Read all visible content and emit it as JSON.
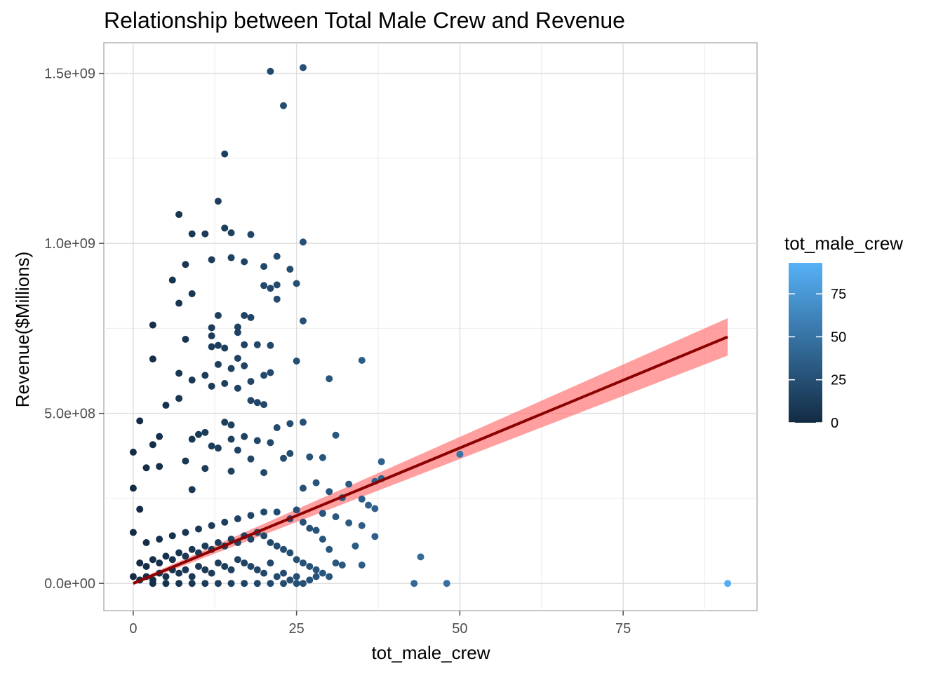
{
  "chart_data": {
    "type": "scatter",
    "title": "Relationship between Total Male Crew and Revenue",
    "xlabel": "tot_male_crew",
    "ylabel": "Revenue($Millions)",
    "xlim": [
      -4.5,
      95.5
    ],
    "ylim": [
      -80000000.0,
      1590000000.0
    ],
    "x_ticks": [
      0,
      25,
      50,
      75
    ],
    "x_tick_labels": [
      "0",
      "25",
      "50",
      "75"
    ],
    "y_ticks": [
      0,
      500000000,
      1000000000,
      1500000000
    ],
    "y_tick_labels": [
      "0.0e+00",
      "5.0e+08",
      "1.0e+09",
      "1.5e+09"
    ],
    "grid": true,
    "legend": {
      "title": "tot_male_crew",
      "placement": "right",
      "min": 0,
      "max": 93,
      "ticks": [
        0,
        25,
        50,
        75
      ],
      "tick_labels": [
        "0",
        "25",
        "50",
        "75"
      ],
      "color_low": "#132B43",
      "color_high": "#56B1F7"
    },
    "points": [
      [
        21,
        1506000000
      ],
      [
        26,
        1517000000
      ],
      [
        23,
        1405000000
      ],
      [
        14,
        1263000000
      ],
      [
        13,
        1124000000
      ],
      [
        7,
        1085000000
      ],
      [
        14,
        1045000000
      ],
      [
        9,
        1028000000
      ],
      [
        11,
        1028000000
      ],
      [
        18,
        1026000000
      ],
      [
        15,
        1031000000
      ],
      [
        26,
        1004000000
      ],
      [
        22,
        962000000
      ],
      [
        15,
        958000000
      ],
      [
        12,
        952000000
      ],
      [
        17,
        946000000
      ],
      [
        8,
        938000000
      ],
      [
        20,
        932000000
      ],
      [
        24,
        924000000
      ],
      [
        25,
        882000000
      ],
      [
        6,
        892000000
      ],
      [
        20,
        876000000
      ],
      [
        22,
        878000000
      ],
      [
        21,
        868000000
      ],
      [
        9,
        852000000
      ],
      [
        22,
        836000000
      ],
      [
        7,
        824000000
      ],
      [
        13,
        788000000
      ],
      [
        17,
        788000000
      ],
      [
        26,
        772000000
      ],
      [
        3,
        760000000
      ],
      [
        12,
        752000000
      ],
      [
        18,
        782000000
      ],
      [
        16,
        754000000
      ],
      [
        16,
        738000000
      ],
      [
        12,
        728000000
      ],
      [
        19,
        702000000
      ],
      [
        21,
        700000000
      ],
      [
        12,
        696000000
      ],
      [
        14,
        692000000
      ],
      [
        13,
        700000000
      ],
      [
        17,
        702000000
      ],
      [
        8,
        718000000
      ],
      [
        3,
        660000000
      ],
      [
        16,
        662000000
      ],
      [
        25,
        654000000
      ],
      [
        35,
        656000000
      ],
      [
        13,
        644000000
      ],
      [
        17,
        640000000
      ],
      [
        15,
        632000000
      ],
      [
        7,
        618000000
      ],
      [
        11,
        612000000
      ],
      [
        20,
        612000000
      ],
      [
        21,
        620000000
      ],
      [
        30,
        602000000
      ],
      [
        9,
        598000000
      ],
      [
        14,
        588000000
      ],
      [
        18,
        594000000
      ],
      [
        12,
        580000000
      ],
      [
        16,
        574000000
      ],
      [
        7,
        544000000
      ],
      [
        18,
        538000000
      ],
      [
        19,
        532000000
      ],
      [
        20,
        526000000
      ],
      [
        5,
        524000000
      ],
      [
        1,
        478000000
      ],
      [
        14,
        474000000
      ],
      [
        26,
        474000000
      ],
      [
        24,
        470000000
      ],
      [
        15,
        466000000
      ],
      [
        22,
        458000000
      ],
      [
        11,
        444000000
      ],
      [
        10,
        438000000
      ],
      [
        4,
        432000000
      ],
      [
        17,
        432000000
      ],
      [
        31,
        436000000
      ],
      [
        9,
        424000000
      ],
      [
        15,
        424000000
      ],
      [
        3,
        408000000
      ],
      [
        12,
        404000000
      ],
      [
        19,
        420000000
      ],
      [
        21,
        414000000
      ],
      [
        0,
        386000000
      ],
      [
        13,
        398000000
      ],
      [
        16,
        392000000
      ],
      [
        24,
        382000000
      ],
      [
        38,
        358000000
      ],
      [
        50,
        380000000
      ],
      [
        27,
        372000000
      ],
      [
        29,
        370000000
      ],
      [
        23,
        368000000
      ],
      [
        18,
        366000000
      ],
      [
        8,
        360000000
      ],
      [
        4,
        344000000
      ],
      [
        2,
        340000000
      ],
      [
        11,
        338000000
      ],
      [
        15,
        330000000
      ],
      [
        20,
        326000000
      ],
      [
        33,
        292000000
      ],
      [
        38,
        308000000
      ],
      [
        37,
        300000000
      ],
      [
        28,
        296000000
      ],
      [
        0,
        280000000
      ],
      [
        9,
        276000000
      ],
      [
        26,
        280000000
      ],
      [
        30,
        270000000
      ],
      [
        32,
        252000000
      ],
      [
        35,
        248000000
      ],
      [
        36,
        230000000
      ],
      [
        37,
        220000000
      ],
      [
        25,
        216000000
      ],
      [
        29,
        206000000
      ],
      [
        1,
        218000000
      ],
      [
        31,
        196000000
      ],
      [
        33,
        178000000
      ],
      [
        35,
        170000000
      ],
      [
        37,
        138000000
      ],
      [
        34,
        110000000
      ],
      [
        27,
        162000000
      ],
      [
        28,
        156000000
      ],
      [
        29,
        130000000
      ],
      [
        30,
        100000000
      ],
      [
        31,
        60000000
      ],
      [
        32,
        54000000
      ],
      [
        35,
        54000000
      ],
      [
        44,
        78000000
      ],
      [
        43,
        0
      ],
      [
        48,
        0
      ],
      [
        91,
        0
      ],
      [
        0,
        150000000
      ],
      [
        2,
        120000000
      ],
      [
        4,
        130000000
      ],
      [
        6,
        140000000
      ],
      [
        8,
        150000000
      ],
      [
        10,
        160000000
      ],
      [
        12,
        170000000
      ],
      [
        14,
        180000000
      ],
      [
        16,
        190000000
      ],
      [
        18,
        200000000
      ],
      [
        20,
        210000000
      ],
      [
        22,
        210000000
      ],
      [
        24,
        190000000
      ],
      [
        26,
        180000000
      ],
      [
        1,
        60000000
      ],
      [
        2,
        50000000
      ],
      [
        3,
        70000000
      ],
      [
        4,
        60000000
      ],
      [
        5,
        80000000
      ],
      [
        6,
        70000000
      ],
      [
        7,
        90000000
      ],
      [
        8,
        80000000
      ],
      [
        9,
        100000000
      ],
      [
        10,
        90000000
      ],
      [
        11,
        110000000
      ],
      [
        12,
        100000000
      ],
      [
        13,
        120000000
      ],
      [
        14,
        110000000
      ],
      [
        15,
        130000000
      ],
      [
        16,
        120000000
      ],
      [
        17,
        140000000
      ],
      [
        18,
        130000000
      ],
      [
        19,
        150000000
      ],
      [
        20,
        140000000
      ],
      [
        21,
        120000000
      ],
      [
        22,
        110000000
      ],
      [
        23,
        100000000
      ],
      [
        24,
        90000000
      ],
      [
        25,
        70000000
      ],
      [
        26,
        60000000
      ],
      [
        27,
        50000000
      ],
      [
        28,
        40000000
      ],
      [
        29,
        30000000
      ],
      [
        30,
        20000000
      ],
      [
        0,
        20000000
      ],
      [
        1,
        10000000
      ],
      [
        2,
        20000000
      ],
      [
        3,
        10000000
      ],
      [
        4,
        30000000
      ],
      [
        5,
        20000000
      ],
      [
        6,
        40000000
      ],
      [
        7,
        30000000
      ],
      [
        8,
        40000000
      ],
      [
        9,
        20000000
      ],
      [
        10,
        50000000
      ],
      [
        11,
        40000000
      ],
      [
        12,
        30000000
      ],
      [
        13,
        60000000
      ],
      [
        14,
        50000000
      ],
      [
        15,
        40000000
      ],
      [
        16,
        70000000
      ],
      [
        17,
        60000000
      ],
      [
        18,
        50000000
      ],
      [
        19,
        40000000
      ],
      [
        20,
        30000000
      ],
      [
        21,
        60000000
      ],
      [
        22,
        20000000
      ],
      [
        23,
        30000000
      ],
      [
        24,
        10000000
      ],
      [
        25,
        20000000
      ],
      [
        26,
        0
      ],
      [
        27,
        10000000
      ],
      [
        28,
        20000000
      ],
      [
        3,
        0
      ],
      [
        5,
        0
      ],
      [
        7,
        0
      ],
      [
        9,
        0
      ],
      [
        11,
        0
      ],
      [
        13,
        0
      ],
      [
        15,
        0
      ],
      [
        17,
        0
      ],
      [
        19,
        0
      ],
      [
        21,
        0
      ],
      [
        23,
        0
      ],
      [
        25,
        0
      ]
    ],
    "regression": {
      "x_start": 0,
      "x_end": 91,
      "y_start": 0,
      "y_end": 725000000,
      "ci_low_start": -5000000,
      "ci_high_start": 5000000,
      "ci_low_end": 670000000,
      "ci_high_end": 780000000,
      "line_color": "#8B0000",
      "band_color": "#FF6B6B"
    }
  }
}
